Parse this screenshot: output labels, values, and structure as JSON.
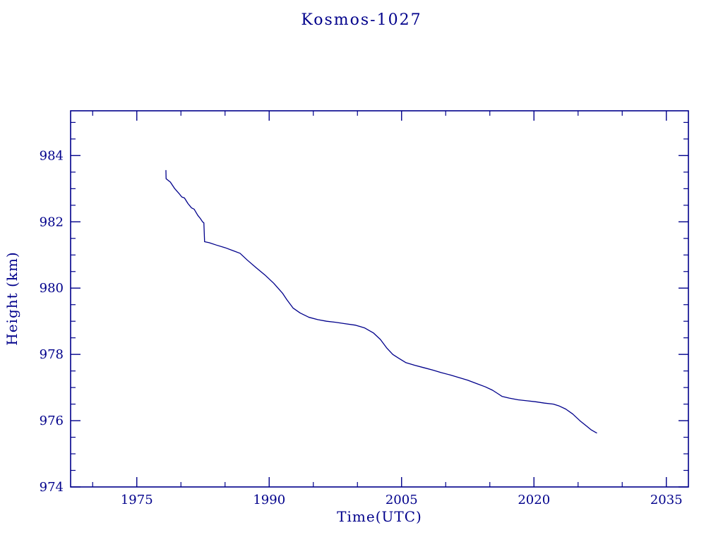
{
  "chart_data": {
    "type": "line",
    "title": "Kosmos-1027",
    "xlabel": "Time(UTC)",
    "ylabel": "Height (km)",
    "xlim": [
      1967.5,
      2037.5
    ],
    "ylim": [
      974,
      985.35
    ],
    "x_ticks": [
      1975,
      1990,
      2005,
      2020,
      2035
    ],
    "x_tick_labels": [
      "1975",
      "1990",
      "2005",
      "2020",
      "2035"
    ],
    "y_ticks": [
      974,
      976,
      978,
      980,
      982,
      984
    ],
    "y_tick_labels": [
      "974",
      "976",
      "978",
      "980",
      "982",
      "984"
    ],
    "x_minor_step": 5,
    "y_minor_step": 0.5,
    "axis_color": "#00008B",
    "line_color": "#00008B",
    "grid": false,
    "legend": "none",
    "series": [
      {
        "name": "height-km",
        "points": [
          [
            1978.3,
            983.55
          ],
          [
            1978.32,
            983.3
          ],
          [
            1978.8,
            983.2
          ],
          [
            1979.3,
            983.0
          ],
          [
            1979.8,
            982.85
          ],
          [
            1980.1,
            982.75
          ],
          [
            1980.4,
            982.72
          ],
          [
            1980.8,
            982.55
          ],
          [
            1981.2,
            982.42
          ],
          [
            1981.5,
            982.38
          ],
          [
            1981.9,
            982.2
          ],
          [
            1982.2,
            982.1
          ],
          [
            1982.45,
            982.0
          ],
          [
            1982.6,
            981.97
          ],
          [
            1982.68,
            981.4
          ],
          [
            1983.2,
            981.37
          ],
          [
            1984.0,
            981.3
          ],
          [
            1985.0,
            981.22
          ],
          [
            1986.0,
            981.12
          ],
          [
            1986.7,
            981.05
          ],
          [
            1987.5,
            980.85
          ],
          [
            1988.5,
            980.62
          ],
          [
            1989.5,
            980.4
          ],
          [
            1990.5,
            980.15
          ],
          [
            1991.5,
            979.85
          ],
          [
            1992.0,
            979.65
          ],
          [
            1992.7,
            979.4
          ],
          [
            1993.5,
            979.25
          ],
          [
            1994.5,
            979.12
          ],
          [
            1995.5,
            979.05
          ],
          [
            1996.5,
            979.0
          ],
          [
            1997.5,
            978.97
          ],
          [
            1998.5,
            978.93
          ],
          [
            1999.8,
            978.88
          ],
          [
            2000.8,
            978.8
          ],
          [
            2001.8,
            978.65
          ],
          [
            2002.6,
            978.45
          ],
          [
            2003.3,
            978.2
          ],
          [
            2004.0,
            978.0
          ],
          [
            2004.7,
            977.88
          ],
          [
            2005.5,
            977.75
          ],
          [
            2006.5,
            977.67
          ],
          [
            2007.5,
            977.6
          ],
          [
            2008.5,
            977.53
          ],
          [
            2009.5,
            977.45
          ],
          [
            2010.5,
            977.38
          ],
          [
            2011.5,
            977.3
          ],
          [
            2012.5,
            977.22
          ],
          [
            2013.5,
            977.12
          ],
          [
            2014.5,
            977.02
          ],
          [
            2015.3,
            976.92
          ],
          [
            2016.0,
            976.8
          ],
          [
            2016.4,
            976.73
          ],
          [
            2017.2,
            976.68
          ],
          [
            2018.2,
            976.63
          ],
          [
            2019.2,
            976.6
          ],
          [
            2020.2,
            976.57
          ],
          [
            2021.2,
            976.53
          ],
          [
            2022.2,
            976.5
          ],
          [
            2022.8,
            976.45
          ],
          [
            2023.6,
            976.35
          ],
          [
            2024.4,
            976.2
          ],
          [
            2025.2,
            976.0
          ],
          [
            2025.9,
            975.85
          ],
          [
            2026.5,
            975.72
          ],
          [
            2026.9,
            975.66
          ],
          [
            2027.1,
            975.63
          ]
        ]
      }
    ]
  }
}
